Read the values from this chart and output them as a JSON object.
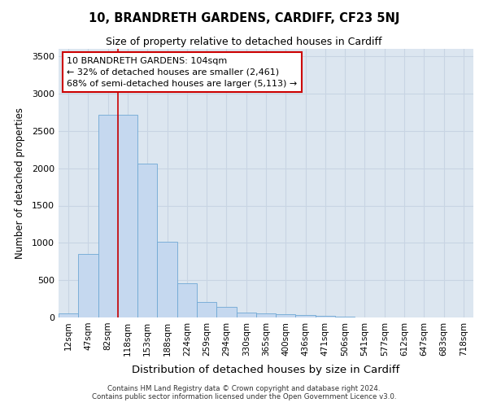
{
  "title": "10, BRANDRETH GARDENS, CARDIFF, CF23 5NJ",
  "subtitle": "Size of property relative to detached houses in Cardiff",
  "xlabel": "Distribution of detached houses by size in Cardiff",
  "ylabel": "Number of detached properties",
  "categories": [
    "12sqm",
    "47sqm",
    "82sqm",
    "118sqm",
    "153sqm",
    "188sqm",
    "224sqm",
    "259sqm",
    "294sqm",
    "330sqm",
    "365sqm",
    "400sqm",
    "436sqm",
    "471sqm",
    "506sqm",
    "541sqm",
    "577sqm",
    "612sqm",
    "647sqm",
    "683sqm",
    "718sqm"
  ],
  "bar_values": [
    55,
    855,
    2720,
    2720,
    2060,
    1010,
    455,
    205,
    140,
    70,
    55,
    45,
    30,
    20,
    8,
    4,
    2,
    1,
    0,
    0,
    0
  ],
  "bar_color": "#c5d8ef",
  "bar_edge_color": "#6fa8d4",
  "grid_color": "#c8d4e3",
  "background_color": "#dce6f0",
  "vline_x": 2.5,
  "vline_color": "#cc0000",
  "annotation_text": "10 BRANDRETH GARDENS: 104sqm\n← 32% of detached houses are smaller (2,461)\n68% of semi-detached houses are larger (5,113) →",
  "annotation_box_color": "#ffffff",
  "annotation_box_edge": "#cc0000",
  "ylim": [
    0,
    3600
  ],
  "yticks": [
    0,
    500,
    1000,
    1500,
    2000,
    2500,
    3000,
    3500
  ],
  "footer_line1": "Contains HM Land Registry data © Crown copyright and database right 2024.",
  "footer_line2": "Contains public sector information licensed under the Open Government Licence v3.0."
}
